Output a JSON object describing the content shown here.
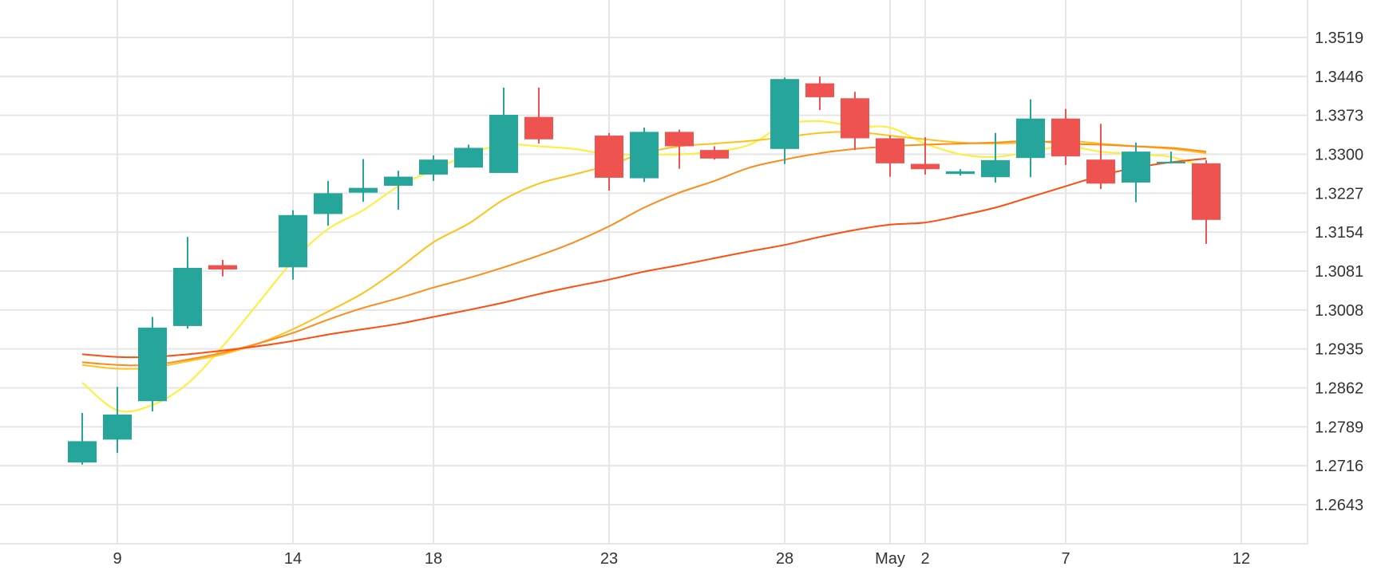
{
  "chart_data": {
    "type": "candlestick",
    "colors": {
      "up": "#26a69a",
      "down": "#ef5350",
      "grid": "#e6e6e6",
      "ma": [
        "#ffee33",
        "#ffc21a",
        "#ff8c1a",
        "#ff4d0d"
      ]
    },
    "ylim": [
      1.257,
      1.3592
    ],
    "y_ticks": [
      "1.3519",
      "1.3446",
      "1.3373",
      "1.3300",
      "1.3227",
      "1.3154",
      "1.3081",
      "1.3008",
      "1.2935",
      "1.2862",
      "1.2789",
      "1.2716",
      "1.2643"
    ],
    "x_ticks": [
      {
        "label": "9",
        "day": 9
      },
      {
        "label": "14",
        "day": 14
      },
      {
        "label": "18",
        "day": 18
      },
      {
        "label": "23",
        "day": 23
      },
      {
        "label": "28",
        "day": 28
      },
      {
        "label": "May",
        "day": 31
      },
      {
        "label": "2",
        "day": 32
      },
      {
        "label": "7",
        "day": 36
      },
      {
        "label": "12",
        "day": 41
      }
    ],
    "candles": [
      {
        "day": 8,
        "o": 1.2722,
        "h": 1.2815,
        "l": 1.2718,
        "c": 1.2762
      },
      {
        "day": 9,
        "o": 1.2765,
        "h": 1.2864,
        "l": 1.274,
        "c": 1.2812
      },
      {
        "day": 10,
        "o": 1.2837,
        "h": 1.2995,
        "l": 1.2818,
        "c": 1.2975
      },
      {
        "day": 11,
        "o": 1.2978,
        "h": 1.3145,
        "l": 1.2973,
        "c": 1.3087
      },
      {
        "day": 12,
        "o": 1.3092,
        "h": 1.3102,
        "l": 1.3071,
        "c": 1.3084
      },
      {
        "day": 14,
        "o": 1.3088,
        "h": 1.3195,
        "l": 1.3065,
        "c": 1.3186
      },
      {
        "day": 15,
        "o": 1.3188,
        "h": 1.325,
        "l": 1.3166,
        "c": 1.3227
      },
      {
        "day": 16,
        "o": 1.3228,
        "h": 1.3291,
        "l": 1.3211,
        "c": 1.3237
      },
      {
        "day": 17,
        "o": 1.3241,
        "h": 1.3269,
        "l": 1.3196,
        "c": 1.3258
      },
      {
        "day": 18,
        "o": 1.3262,
        "h": 1.3298,
        "l": 1.325,
        "c": 1.329
      },
      {
        "day": 19,
        "o": 1.3275,
        "h": 1.3318,
        "l": 1.3275,
        "c": 1.3312
      },
      {
        "day": 20,
        "o": 1.3265,
        "h": 1.3425,
        "l": 1.3265,
        "c": 1.3374
      },
      {
        "day": 21,
        "o": 1.337,
        "h": 1.3425,
        "l": 1.332,
        "c": 1.3328
      },
      {
        "day": 23,
        "o": 1.3335,
        "h": 1.334,
        "l": 1.3232,
        "c": 1.3256
      },
      {
        "day": 24,
        "o": 1.3255,
        "h": 1.335,
        "l": 1.3248,
        "c": 1.3342
      },
      {
        "day": 25,
        "o": 1.3342,
        "h": 1.3346,
        "l": 1.3273,
        "c": 1.3315
      },
      {
        "day": 26,
        "o": 1.3308,
        "h": 1.3315,
        "l": 1.329,
        "c": 1.3292
      },
      {
        "day": 28,
        "o": 1.331,
        "h": 1.3444,
        "l": 1.3282,
        "c": 1.3441
      },
      {
        "day": 29,
        "o": 1.3433,
        "h": 1.3446,
        "l": 1.3383,
        "c": 1.3407
      },
      {
        "day": 30,
        "o": 1.3405,
        "h": 1.3417,
        "l": 1.3308,
        "c": 1.333
      },
      {
        "day": 31,
        "o": 1.333,
        "h": 1.3335,
        "l": 1.3258,
        "c": 1.3283
      },
      {
        "day": 32,
        "o": 1.3282,
        "h": 1.3332,
        "l": 1.3262,
        "c": 1.3272
      },
      {
        "day": 33,
        "o": 1.3263,
        "h": 1.3272,
        "l": 1.326,
        "c": 1.3268
      },
      {
        "day": 34,
        "o": 1.3257,
        "h": 1.334,
        "l": 1.3247,
        "c": 1.3289
      },
      {
        "day": 35,
        "o": 1.3293,
        "h": 1.3403,
        "l": 1.3257,
        "c": 1.3367
      },
      {
        "day": 36,
        "o": 1.3367,
        "h": 1.3385,
        "l": 1.328,
        "c": 1.3296
      },
      {
        "day": 37,
        "o": 1.329,
        "h": 1.3357,
        "l": 1.3235,
        "c": 1.3245
      },
      {
        "day": 38,
        "o": 1.3247,
        "h": 1.3322,
        "l": 1.321,
        "c": 1.3305
      },
      {
        "day": 39,
        "o": 1.3285,
        "h": 1.3305,
        "l": 1.3283,
        "c": 1.3286
      },
      {
        "day": 40,
        "o": 1.3283,
        "h": 1.3289,
        "l": 1.3132,
        "c": 1.3177
      }
    ],
    "moving_averages": [
      {
        "color": "#ffee33",
        "points": [
          [
            8,
            1.2872
          ],
          [
            9,
            1.282
          ],
          [
            10,
            1.283
          ],
          [
            11,
            1.287
          ],
          [
            12,
            1.294
          ],
          [
            13,
            1.302
          ],
          [
            14,
            1.31
          ],
          [
            15,
            1.316
          ],
          [
            16,
            1.3195
          ],
          [
            17,
            1.324
          ],
          [
            18,
            1.327
          ],
          [
            19,
            1.33
          ],
          [
            20,
            1.3318
          ],
          [
            21,
            1.3315
          ],
          [
            22,
            1.331
          ],
          [
            23,
            1.33
          ],
          [
            24,
            1.33
          ],
          [
            25,
            1.33
          ],
          [
            26,
            1.3305
          ],
          [
            27,
            1.3318
          ],
          [
            28,
            1.3355
          ],
          [
            29,
            1.3362
          ],
          [
            30,
            1.3352
          ],
          [
            31,
            1.335
          ],
          [
            32,
            1.332
          ],
          [
            33,
            1.33
          ],
          [
            34,
            1.3295
          ],
          [
            35,
            1.3305
          ],
          [
            36,
            1.3315
          ],
          [
            37,
            1.3305
          ],
          [
            38,
            1.33
          ],
          [
            39,
            1.3295
          ],
          [
            40,
            1.3275
          ]
        ]
      },
      {
        "color": "#ffc21a",
        "points": [
          [
            8,
            1.2905
          ],
          [
            9,
            1.2898
          ],
          [
            10,
            1.29
          ],
          [
            11,
            1.2912
          ],
          [
            12,
            1.2925
          ],
          [
            13,
            1.2945
          ],
          [
            14,
            1.2972
          ],
          [
            15,
            1.3005
          ],
          [
            16,
            1.304
          ],
          [
            17,
            1.3085
          ],
          [
            18,
            1.3135
          ],
          [
            19,
            1.317
          ],
          [
            20,
            1.3215
          ],
          [
            21,
            1.3245
          ],
          [
            22,
            1.3262
          ],
          [
            23,
            1.328
          ],
          [
            24,
            1.3302
          ],
          [
            25,
            1.3315
          ],
          [
            26,
            1.332
          ],
          [
            27,
            1.3325
          ],
          [
            28,
            1.3332
          ],
          [
            29,
            1.334
          ],
          [
            30,
            1.3342
          ],
          [
            31,
            1.3335
          ],
          [
            32,
            1.3328
          ],
          [
            33,
            1.3322
          ],
          [
            34,
            1.332
          ],
          [
            35,
            1.3322
          ],
          [
            36,
            1.3325
          ],
          [
            37,
            1.332
          ],
          [
            38,
            1.3315
          ],
          [
            39,
            1.331
          ],
          [
            40,
            1.3302
          ]
        ]
      },
      {
        "color": "#ff8c1a",
        "points": [
          [
            8,
            1.291
          ],
          [
            9,
            1.2905
          ],
          [
            10,
            1.2905
          ],
          [
            11,
            1.2915
          ],
          [
            12,
            1.2928
          ],
          [
            13,
            1.2945
          ],
          [
            14,
            1.2965
          ],
          [
            15,
            1.299
          ],
          [
            16,
            1.3012
          ],
          [
            17,
            1.303
          ],
          [
            18,
            1.305
          ],
          [
            19,
            1.3068
          ],
          [
            20,
            1.3088
          ],
          [
            21,
            1.311
          ],
          [
            22,
            1.3135
          ],
          [
            23,
            1.3165
          ],
          [
            24,
            1.32
          ],
          [
            25,
            1.3228
          ],
          [
            26,
            1.325
          ],
          [
            27,
            1.3275
          ],
          [
            28,
            1.329
          ],
          [
            29,
            1.3302
          ],
          [
            30,
            1.331
          ],
          [
            31,
            1.3315
          ],
          [
            32,
            1.3318
          ],
          [
            33,
            1.332
          ],
          [
            34,
            1.3322
          ],
          [
            35,
            1.3325
          ],
          [
            36,
            1.332
          ],
          [
            37,
            1.3318
          ],
          [
            38,
            1.3315
          ],
          [
            39,
            1.3312
          ],
          [
            40,
            1.3305
          ]
        ]
      },
      {
        "color": "#ff4d0d",
        "points": [
          [
            8,
            1.2925
          ],
          [
            9,
            1.292
          ],
          [
            10,
            1.292
          ],
          [
            11,
            1.2925
          ],
          [
            12,
            1.2932
          ],
          [
            13,
            1.294
          ],
          [
            14,
            1.295
          ],
          [
            15,
            1.2962
          ],
          [
            16,
            1.2972
          ],
          [
            17,
            1.2982
          ],
          [
            18,
            1.2995
          ],
          [
            19,
            1.3008
          ],
          [
            20,
            1.3022
          ],
          [
            21,
            1.3038
          ],
          [
            22,
            1.3052
          ],
          [
            23,
            1.3065
          ],
          [
            24,
            1.308
          ],
          [
            25,
            1.3092
          ],
          [
            26,
            1.3105
          ],
          [
            27,
            1.3118
          ],
          [
            28,
            1.313
          ],
          [
            29,
            1.3145
          ],
          [
            30,
            1.3158
          ],
          [
            31,
            1.3168
          ],
          [
            32,
            1.3172
          ],
          [
            33,
            1.3185
          ],
          [
            34,
            1.32
          ],
          [
            35,
            1.322
          ],
          [
            36,
            1.324
          ],
          [
            37,
            1.326
          ],
          [
            38,
            1.3275
          ],
          [
            39,
            1.3285
          ],
          [
            40,
            1.3292
          ]
        ]
      }
    ]
  }
}
